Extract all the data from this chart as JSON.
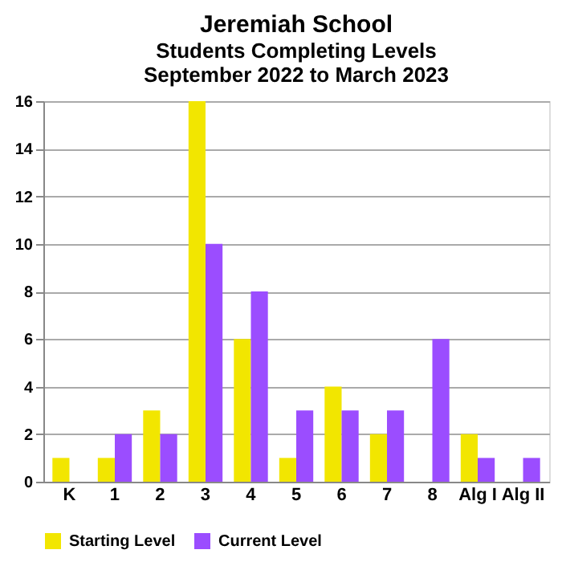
{
  "chart_data": {
    "type": "bar",
    "title": "Jeremiah School",
    "subtitle": [
      "Students Completing Levels",
      "September 2022 to March 2023"
    ],
    "categories": [
      "K",
      "1",
      "2",
      "3",
      "4",
      "5",
      "6",
      "7",
      "8",
      "Alg I",
      "Alg II"
    ],
    "series": [
      {
        "name": "Starting Level",
        "color": "#f2e600",
        "values": [
          1,
          1,
          3,
          16,
          6,
          1,
          4,
          2,
          0,
          2,
          0
        ]
      },
      {
        "name": "Current Level",
        "color": "#9b4dff",
        "values": [
          0,
          2,
          2,
          10,
          8,
          3,
          3,
          3,
          6,
          1,
          1
        ]
      }
    ],
    "ylim": [
      0,
      16
    ],
    "yticks": [
      0,
      2,
      4,
      6,
      8,
      10,
      12,
      14,
      16
    ],
    "grid": "y",
    "legend": "bottom"
  }
}
